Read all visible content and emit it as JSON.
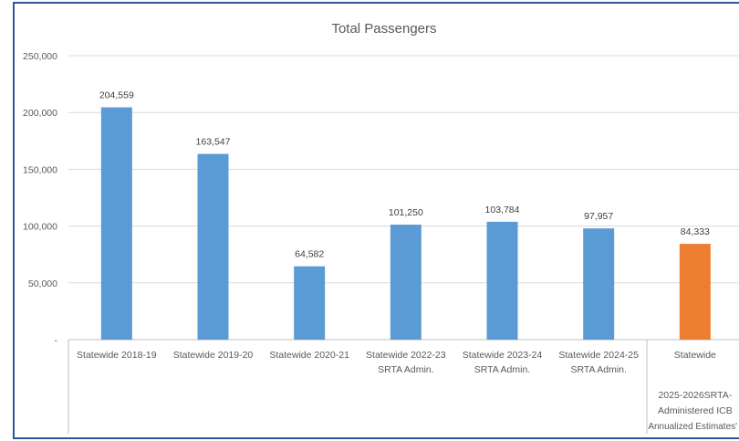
{
  "chart_data": {
    "type": "bar",
    "title": "Total Passengers",
    "categories": [
      [
        "Statewide 2018-19"
      ],
      [
        "Statewide 2019-20"
      ],
      [
        "Statewide 2020-21"
      ],
      [
        "Statewide 2022-23",
        "SRTA Admin."
      ],
      [
        "Statewide 2023-24",
        "SRTA Admin."
      ],
      [
        "Statewide 2024-25",
        "SRTA Admin."
      ],
      [
        "Statewide"
      ]
    ],
    "category_groups": [
      {
        "label": [],
        "category_count": 6
      },
      {
        "label": [
          "2025-2026SRTA-",
          "Administered ICB",
          "Annualized Estimates'"
        ],
        "category_count": 1
      }
    ],
    "values": [
      204559,
      163547,
      64582,
      101250,
      103784,
      97957,
      84333
    ],
    "bar_colors": [
      "#5b9bd5",
      "#5b9bd5",
      "#5b9bd5",
      "#5b9bd5",
      "#5b9bd5",
      "#5b9bd5",
      "#ed7d31"
    ],
    "ylim": [
      0,
      250000
    ],
    "yticks": [
      0,
      50000,
      100000,
      150000,
      200000,
      250000
    ],
    "ytick_labels": [
      "-",
      "50,000",
      "100,000",
      "150,000",
      "200,000",
      "250,000"
    ],
    "grid": true,
    "data_labels": true
  }
}
